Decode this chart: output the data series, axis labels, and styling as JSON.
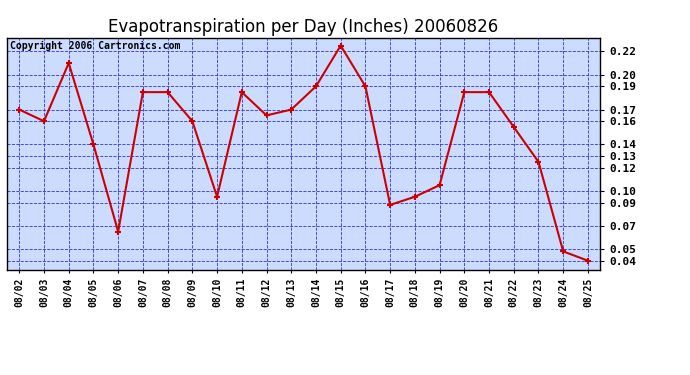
{
  "title": "Evapotranspiration per Day (Inches) 20060826",
  "copyright_text": "Copyright 2006 Cartronics.com",
  "x_labels": [
    "08/02",
    "08/03",
    "08/04",
    "08/05",
    "08/06",
    "08/07",
    "08/08",
    "08/09",
    "08/10",
    "08/11",
    "08/12",
    "08/13",
    "08/14",
    "08/15",
    "08/16",
    "08/17",
    "08/18",
    "08/19",
    "08/20",
    "08/21",
    "08/22",
    "08/23",
    "08/24",
    "08/25"
  ],
  "y_values": [
    0.17,
    0.16,
    0.21,
    0.14,
    0.065,
    0.185,
    0.185,
    0.16,
    0.095,
    0.185,
    0.165,
    0.17,
    0.19,
    0.225,
    0.19,
    0.088,
    0.095,
    0.105,
    0.185,
    0.185,
    0.155,
    0.125,
    0.048,
    0.04
  ],
  "line_color": "#cc0000",
  "marker_color": "#cc0000",
  "grid_color": "#3333cc",
  "background_color": "#ffffff",
  "plot_bg_color": "#ccdcff",
  "ylim_min": 0.032,
  "ylim_max": 0.232,
  "yticks": [
    0.04,
    0.05,
    0.07,
    0.09,
    0.1,
    0.12,
    0.13,
    0.14,
    0.16,
    0.17,
    0.19,
    0.2,
    0.22
  ],
  "title_fontsize": 12,
  "copyright_fontsize": 7,
  "tick_fontsize": 8,
  "x_tick_fontsize": 7
}
